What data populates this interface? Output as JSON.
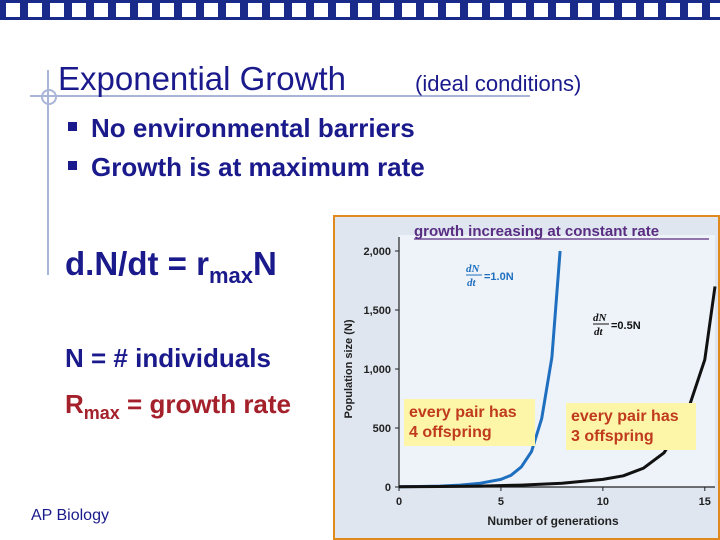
{
  "slide": {
    "title": "Exponential Growth",
    "subtitle": "(ideal conditions)",
    "bullets": [
      "No environmental barriers",
      "Growth is at maximum rate"
    ],
    "equation": {
      "lead": "d.N/dt = r",
      "sub": "max",
      "tail": "N"
    },
    "definitions": [
      {
        "symbol": "N",
        "text": " = # individuals"
      },
      {
        "symbol": "R",
        "sub": "max",
        "text": " = growth rate"
      }
    ],
    "footer": "AP Biology",
    "colors": {
      "header_bar": "#1a2a8a",
      "text": "#1a1a8c",
      "accent_red": "#a4212b"
    }
  },
  "chart_data": {
    "type": "line",
    "title": "growth increasing at constant rate",
    "xlabel": "Number of generations",
    "ylabel": "Population size (N)",
    "xlim": [
      0,
      15.5
    ],
    "ylim": [
      0,
      2000
    ],
    "xticks": [
      "0",
      "5",
      "10",
      "15"
    ],
    "yticks": [
      "0",
      "500",
      "1,000",
      "1,500",
      "2,000"
    ],
    "series": [
      {
        "name": "dN/dt = 1.0N",
        "color": "#1f6fc0",
        "label_num": "dN",
        "label_den": "dt",
        "label_rhs": "=1.0N",
        "x": [
          0,
          1,
          2,
          3,
          4,
          5,
          5.5,
          6,
          6.5,
          7,
          7.5,
          7.9
        ],
        "y": [
          2,
          4,
          8,
          16,
          32,
          64,
          100,
          170,
          300,
          580,
          1100,
          2000
        ]
      },
      {
        "name": "dN/dt = 0.5N",
        "color": "#111111",
        "label_num": "dN",
        "label_den": "dt",
        "label_rhs": "=0.5N",
        "x": [
          0,
          2,
          4,
          6,
          8,
          10,
          11,
          12,
          13,
          14,
          15,
          15.5
        ],
        "y": [
          2,
          4,
          8,
          16,
          32,
          64,
          95,
          160,
          290,
          560,
          1080,
          1700
        ]
      }
    ],
    "annotations": [
      {
        "text_lines": [
          "every pair has",
          "4 offspring"
        ]
      },
      {
        "text_lines": [
          "every pair has",
          "3 offspring"
        ]
      }
    ],
    "colors": {
      "panel_bg": "#dfe6f0",
      "plot_bg": "#eef3f9",
      "frame": "#e08a1e",
      "callout_bg": "#fdf6a8",
      "title_text": "#5a2d82",
      "callout_text": "#c03a1e",
      "axis_text": "#222222"
    }
  }
}
